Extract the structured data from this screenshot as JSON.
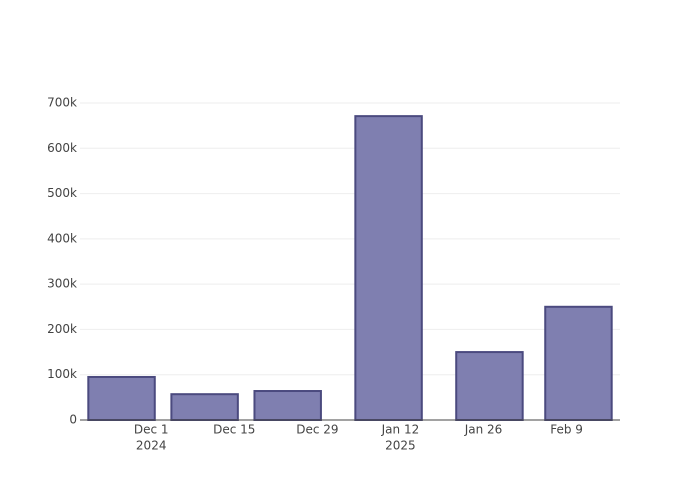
{
  "chart_data": {
    "type": "bar",
    "x": [
      "2024-11-26",
      "2024-12-10",
      "2024-12-24",
      "2025-01-10",
      "2025-01-27",
      "2025-02-11"
    ],
    "values": [
      95000,
      57000,
      64000,
      671000,
      150000,
      250000
    ],
    "color": "#7f7fb0",
    "edge_color": "#4b4a7f",
    "xlim": [
      "2024-11-19",
      "2025-02-18"
    ],
    "xticks": [
      {
        "value": "2024-12-01",
        "label": "Dec 1",
        "year": "2024"
      },
      {
        "value": "2024-12-15",
        "label": "Dec 15"
      },
      {
        "value": "2024-12-29",
        "label": "Dec 29"
      },
      {
        "value": "2025-01-12",
        "label": "Jan 12",
        "year": "2025"
      },
      {
        "value": "2025-01-26",
        "label": "Jan 26"
      },
      {
        "value": "2025-02-09",
        "label": "Feb 9"
      }
    ],
    "ylim": [
      0,
      700000
    ],
    "yticks": [
      0,
      {
        "value": 100000,
        "label": "100k"
      },
      {
        "value": 200000,
        "label": "200k"
      },
      {
        "value": 300000,
        "label": "300k"
      },
      {
        "value": 400000,
        "label": "400k"
      },
      {
        "value": 500000,
        "label": "500k"
      },
      {
        "value": 600000,
        "label": "600k"
      },
      {
        "value": 700000,
        "label": "700k"
      }
    ],
    "grid": true
  }
}
